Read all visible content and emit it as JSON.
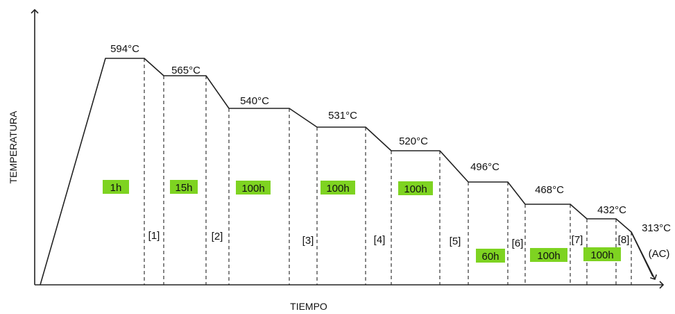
{
  "diagram": {
    "axes": {
      "x_label": "TIEMPO",
      "y_label": "TEMPERATURA"
    },
    "colors": {
      "line": "#222222",
      "duration_highlight": "#7ed321"
    },
    "holds": [
      {
        "temperature": "594°C",
        "duration": "1h"
      },
      {
        "temperature": "565°C",
        "duration": "15h"
      },
      {
        "temperature": "540°C",
        "duration": "100h"
      },
      {
        "temperature": "531°C",
        "duration": "100h"
      },
      {
        "temperature": "520°C",
        "duration": "100h"
      },
      {
        "temperature": "496°C",
        "duration": "60h"
      },
      {
        "temperature": "468°C",
        "duration": "100h"
      },
      {
        "temperature": "432°C",
        "duration": "100h"
      }
    ],
    "final": {
      "temperature": "313°C",
      "note": "(AC)"
    },
    "steps": [
      "[1]",
      "[2]",
      "[3]",
      "[4]",
      "[5]",
      "[6]",
      "[7]",
      "[8]"
    ]
  }
}
